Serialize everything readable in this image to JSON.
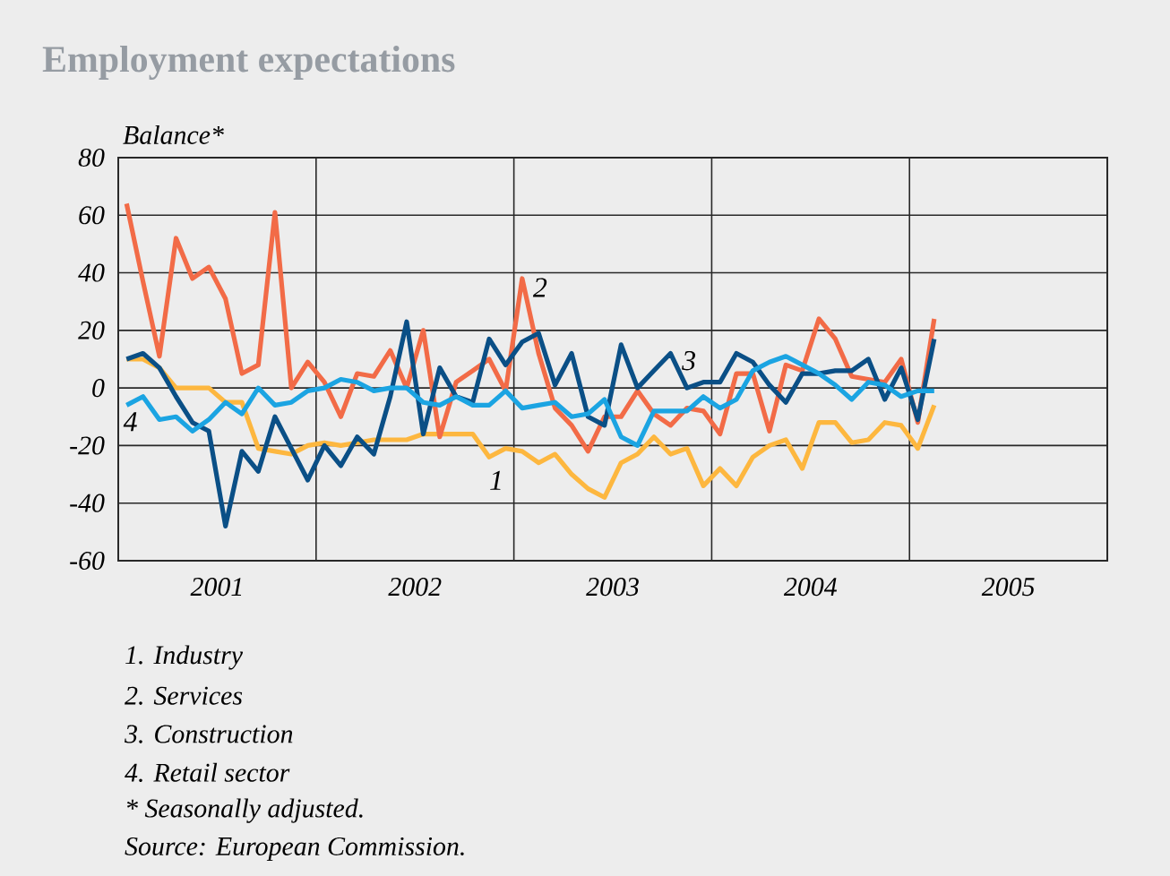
{
  "chart_data": {
    "type": "line",
    "title": "Employment expectations",
    "ylabel": "Balance*",
    "x": [
      2001.042,
      2001.125,
      2001.208,
      2001.292,
      2001.375,
      2001.458,
      2001.542,
      2001.625,
      2001.708,
      2001.792,
      2001.875,
      2001.958,
      2002.042,
      2002.125,
      2002.208,
      2002.292,
      2002.375,
      2002.458,
      2002.542,
      2002.625,
      2002.708,
      2002.792,
      2002.875,
      2002.958,
      2003.042,
      2003.125,
      2003.208,
      2003.292,
      2003.375,
      2003.458,
      2003.542,
      2003.625,
      2003.708,
      2003.792,
      2003.875,
      2003.958,
      2004.042,
      2004.125,
      2004.208,
      2004.292,
      2004.375,
      2004.458,
      2004.542,
      2004.625,
      2004.708,
      2004.792,
      2004.875,
      2004.958,
      2005.042,
      2005.125
    ],
    "series": [
      {
        "name": "1",
        "color": "#fdb73f",
        "values": [
          10,
          10,
          7,
          0,
          0,
          0,
          -5,
          -5,
          -21,
          -22,
          -23,
          -20,
          -19,
          -20,
          -19,
          -18,
          -18,
          -18,
          -16,
          -16,
          -16,
          -16,
          -24,
          -21,
          -22,
          -26,
          -23,
          -30,
          -35,
          -38,
          -26,
          -23,
          -17,
          -23,
          -21,
          -34,
          -28,
          -34,
          -24,
          -20,
          -18,
          -28,
          -12,
          -12,
          -19,
          -18,
          -12,
          -13,
          -21,
          -6
        ]
      },
      {
        "name": "2",
        "color": "#f26b47",
        "values": [
          64,
          37,
          11,
          52,
          38,
          42,
          31,
          5,
          8,
          61,
          0,
          9,
          2,
          -10,
          5,
          4,
          13,
          0,
          20,
          -17,
          2,
          6,
          10,
          -1,
          38,
          12,
          -7,
          -13,
          -22,
          -10,
          -10,
          -1,
          -9,
          -13,
          -7,
          -8,
          -16,
          5,
          5,
          -15,
          8,
          6,
          24,
          17,
          4,
          3,
          2,
          10,
          -12,
          24
        ]
      },
      {
        "name": "3",
        "color": "#0a4f86",
        "values": [
          10,
          12,
          7,
          -3,
          -12,
          -15,
          -48,
          -22,
          -29,
          -10,
          -21,
          -32,
          -20,
          -27,
          -17,
          -23,
          -3,
          23,
          -16,
          7,
          -3,
          -5,
          17,
          8,
          16,
          19,
          1,
          12,
          -10,
          -13,
          15,
          0,
          6,
          12,
          0,
          2,
          2,
          12,
          9,
          1,
          -5,
          5,
          5,
          6,
          6,
          10,
          -4,
          7,
          -11,
          17
        ]
      },
      {
        "name": "4",
        "color": "#1ba4e2",
        "values": [
          -6,
          -3,
          -11,
          -10,
          -15,
          -11,
          -5,
          -9,
          0,
          -6,
          -5,
          -1,
          0,
          3,
          2,
          -1,
          0,
          0,
          -5,
          -6,
          -3,
          -6,
          -6,
          -1,
          -7,
          -6,
          -5,
          -10,
          -9,
          -4,
          -17,
          -20,
          -8,
          -8,
          -8,
          -3,
          -7,
          -4,
          6,
          9,
          11,
          8,
          5,
          1,
          -4,
          2,
          1,
          -3,
          -1,
          -1
        ]
      }
    ],
    "xlim": [
      2001,
      2006
    ],
    "xticks": [
      {
        "value": 2002,
        "label": null
      },
      {
        "value": 2003,
        "label": null
      },
      {
        "value": 2004,
        "label": null
      },
      {
        "value": 2005,
        "label": null
      },
      {
        "value": 2001.5,
        "label": "2001"
      },
      {
        "value": 2002.5,
        "label": "2002"
      },
      {
        "value": 2003.5,
        "label": "2003"
      },
      {
        "value": 2004.5,
        "label": "2004"
      },
      {
        "value": 2005.5,
        "label": "2005"
      }
    ],
    "ylim": [
      -60,
      80
    ],
    "yticks": [
      -60,
      -40,
      -20,
      0,
      20,
      40,
      60,
      80
    ],
    "grid": true,
    "annotations": [
      "1.  Industry",
      "2.  Services",
      "3.  Construction",
      "4.  Retail sector",
      "* Seasonally adjusted.",
      "Source: European Commission."
    ]
  }
}
